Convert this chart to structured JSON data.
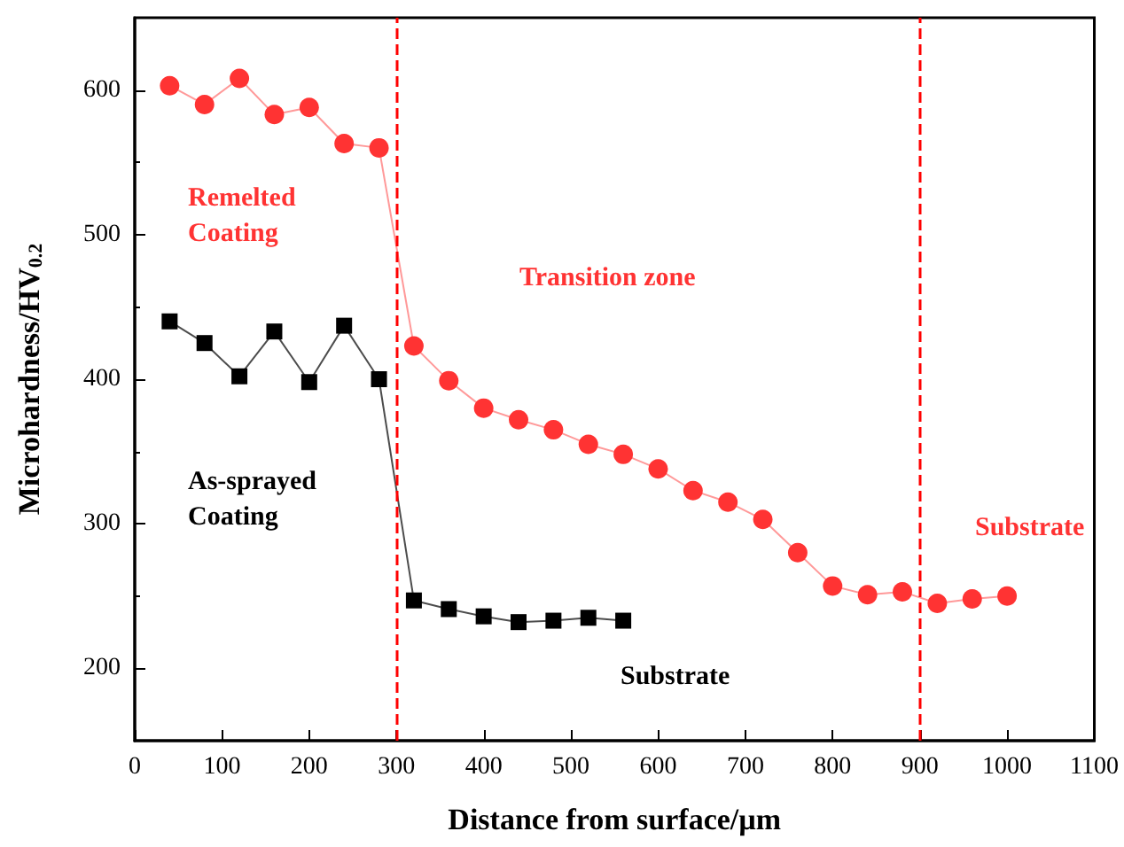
{
  "chart_data": {
    "type": "line",
    "xlabel": "Distance from surface/µm",
    "ylabel": "Microhardness/HV$_{0.2}$",
    "annotations": [
      "Remelted\nCoating",
      "Transition zone",
      "Substrate",
      "As-sprayed\nCoating",
      "Substrate"
    ],
    "series": [
      {
        "color": "#ff3333",
        "marker": "circle",
        "x": [
          40,
          80,
          120,
          160,
          200,
          240,
          280,
          320,
          360,
          400,
          440,
          480,
          520,
          560,
          600,
          640,
          680,
          720,
          760,
          800,
          840,
          880,
          920,
          960,
          1000
        ],
        "values": [
          603,
          590,
          608,
          583,
          588,
          563,
          560,
          423,
          399,
          380,
          372,
          365,
          355,
          348,
          338,
          323,
          315,
          303,
          280,
          257,
          251,
          253,
          245,
          248,
          250
        ]
      },
      {
        "color": "#000000",
        "marker": "square",
        "x": [
          40,
          80,
          120,
          160,
          200,
          240,
          280,
          320,
          360,
          400,
          440,
          480,
          520,
          560
        ],
        "values": [
          440,
          425,
          402,
          433,
          398,
          437,
          400,
          247,
          241,
          236,
          232,
          233,
          235,
          233
        ]
      }
    ],
    "ref_lines": [
      {
        "axis": "x",
        "value": 300,
        "color": "#ff0000",
        "line_style": "dashed"
      },
      {
        "axis": "x",
        "value": 900,
        "color": "#ff0000",
        "line_style": "dashed"
      }
    ],
    "xlim": [
      0,
      1100
    ],
    "xticks": [
      0,
      100,
      200,
      300,
      400,
      500,
      600,
      700,
      800,
      900,
      1000,
      1100
    ],
    "ylim": [
      150,
      650
    ],
    "yticks": [
      200,
      300,
      400,
      500,
      600
    ],
    "grid": false,
    "line_style": "solid"
  }
}
